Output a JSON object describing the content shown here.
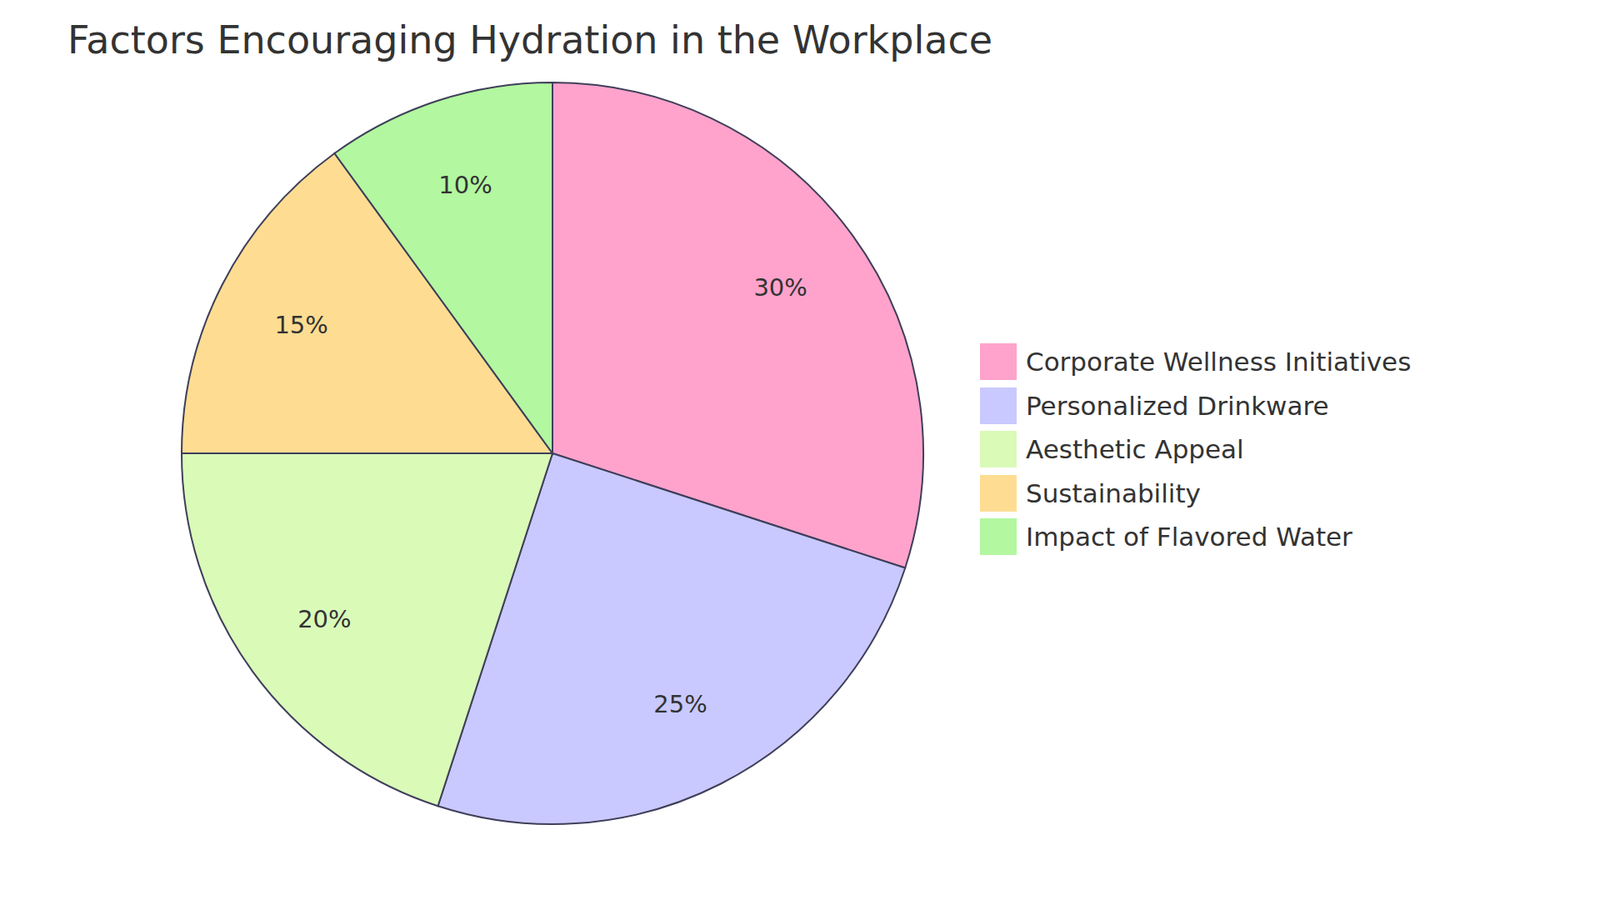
{
  "chart_data": {
    "type": "pie",
    "title": "Factors Encouraging Hydration in the Workplace",
    "categories": [
      "Corporate Wellness Initiatives",
      "Personalized Drinkware",
      "Aesthetic Appeal",
      "Sustainability",
      "Impact of Flavored Water"
    ],
    "values": [
      30,
      25,
      20,
      15,
      10
    ],
    "value_labels": [
      "30%",
      "25%",
      "20%",
      "15%",
      "10%"
    ],
    "colors": [
      "#ffa3cc",
      "#c9c9ff",
      "#dafab8",
      "#fedd92",
      "#b3f7a0"
    ],
    "data_labels": true,
    "legend": "right"
  }
}
